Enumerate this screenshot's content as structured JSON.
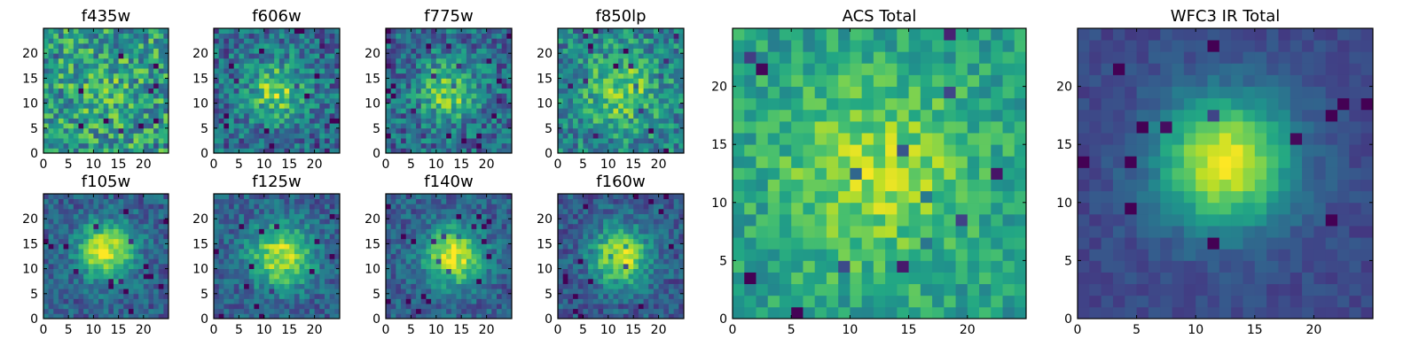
{
  "figure": {
    "colormap": "viridis",
    "background": "#ffffff"
  },
  "chart_data": [
    {
      "type": "heatmap",
      "title": "f435w",
      "grid_size": 25,
      "xlim": [
        0,
        25
      ],
      "ylim": [
        0,
        25
      ],
      "xticks": [
        "0",
        "5",
        "10",
        "15",
        "20"
      ],
      "yticks": [
        "0",
        "5",
        "10",
        "15",
        "20"
      ],
      "source_profile": {
        "center": [
          12,
          12
        ],
        "peak": 0.1,
        "sigma": 4,
        "noise": 0.55,
        "base": 0.55
      }
    },
    {
      "type": "heatmap",
      "title": "f606w",
      "grid_size": 25,
      "xlim": [
        0,
        25
      ],
      "ylim": [
        0,
        25
      ],
      "xticks": [
        "0",
        "5",
        "10",
        "15",
        "20"
      ],
      "yticks": [
        "0",
        "5",
        "10",
        "15",
        "20"
      ],
      "source_profile": {
        "center": [
          12,
          12
        ],
        "peak": 0.45,
        "sigma": 4,
        "noise": 0.45,
        "base": 0.35
      }
    },
    {
      "type": "heatmap",
      "title": "f775w",
      "grid_size": 25,
      "xlim": [
        0,
        25
      ],
      "ylim": [
        0,
        25
      ],
      "xticks": [
        "0",
        "5",
        "10",
        "15",
        "20"
      ],
      "yticks": [
        "0",
        "5",
        "10",
        "15",
        "20"
      ],
      "source_profile": {
        "center": [
          12,
          12
        ],
        "peak": 0.45,
        "sigma": 4,
        "noise": 0.45,
        "base": 0.35
      }
    },
    {
      "type": "heatmap",
      "title": "f850lp",
      "grid_size": 25,
      "xlim": [
        0,
        25
      ],
      "ylim": [
        0,
        25
      ],
      "xticks": [
        "0",
        "5",
        "10",
        "15",
        "20"
      ],
      "yticks": [
        "0",
        "5",
        "10",
        "15",
        "20"
      ],
      "source_profile": {
        "center": [
          12,
          12
        ],
        "peak": 0.35,
        "sigma": 5,
        "noise": 0.45,
        "base": 0.45
      }
    },
    {
      "type": "heatmap",
      "title": "f105w",
      "grid_size": 25,
      "xlim": [
        0,
        25
      ],
      "ylim": [
        0,
        25
      ],
      "xticks": [
        "0",
        "5",
        "10",
        "15",
        "20"
      ],
      "yticks": [
        "0",
        "5",
        "10",
        "15",
        "20"
      ],
      "source_profile": {
        "center": [
          12,
          13
        ],
        "peak": 0.65,
        "sigma": 4,
        "noise": 0.3,
        "base": 0.3
      }
    },
    {
      "type": "heatmap",
      "title": "f125w",
      "grid_size": 25,
      "xlim": [
        0,
        25
      ],
      "ylim": [
        0,
        25
      ],
      "xticks": [
        "0",
        "5",
        "10",
        "15",
        "20"
      ],
      "yticks": [
        "0",
        "5",
        "10",
        "15",
        "20"
      ],
      "source_profile": {
        "center": [
          13,
          12
        ],
        "peak": 0.6,
        "sigma": 4.5,
        "noise": 0.3,
        "base": 0.3
      }
    },
    {
      "type": "heatmap",
      "title": "f140w",
      "grid_size": 25,
      "xlim": [
        0,
        25
      ],
      "ylim": [
        0,
        25
      ],
      "xticks": [
        "0",
        "5",
        "10",
        "15",
        "20"
      ],
      "yticks": [
        "0",
        "5",
        "10",
        "15",
        "20"
      ],
      "source_profile": {
        "center": [
          13,
          12
        ],
        "peak": 0.65,
        "sigma": 4,
        "noise": 0.3,
        "base": 0.3
      }
    },
    {
      "type": "heatmap",
      "title": "f160w",
      "grid_size": 25,
      "xlim": [
        0,
        25
      ],
      "ylim": [
        0,
        25
      ],
      "xticks": [
        "0",
        "5",
        "10",
        "15",
        "20"
      ],
      "yticks": [
        "0",
        "5",
        "10",
        "15",
        "20"
      ],
      "source_profile": {
        "center": [
          12,
          12
        ],
        "peak": 0.65,
        "sigma": 4,
        "noise": 0.3,
        "base": 0.28
      }
    },
    {
      "type": "heatmap",
      "title": "ACS Total",
      "grid_size": 25,
      "xlim": [
        0,
        25
      ],
      "ylim": [
        0,
        25
      ],
      "xticks": [
        "0",
        "5",
        "10",
        "15",
        "20"
      ],
      "yticks": [
        "0",
        "5",
        "10",
        "15",
        "20"
      ],
      "source_profile": {
        "center": [
          12,
          12
        ],
        "peak": 0.3,
        "sigma": 6,
        "noise": 0.3,
        "base": 0.55
      }
    },
    {
      "type": "heatmap",
      "title": "WFC3 IR Total",
      "grid_size": 25,
      "xlim": [
        0,
        25
      ],
      "ylim": [
        0,
        25
      ],
      "xticks": [
        "0",
        "5",
        "10",
        "15",
        "20"
      ],
      "yticks": [
        "0",
        "5",
        "10",
        "15",
        "20"
      ],
      "source_profile": {
        "center": [
          12,
          13
        ],
        "peak": 0.75,
        "sigma": 4,
        "noise": 0.12,
        "base": 0.22
      }
    }
  ]
}
